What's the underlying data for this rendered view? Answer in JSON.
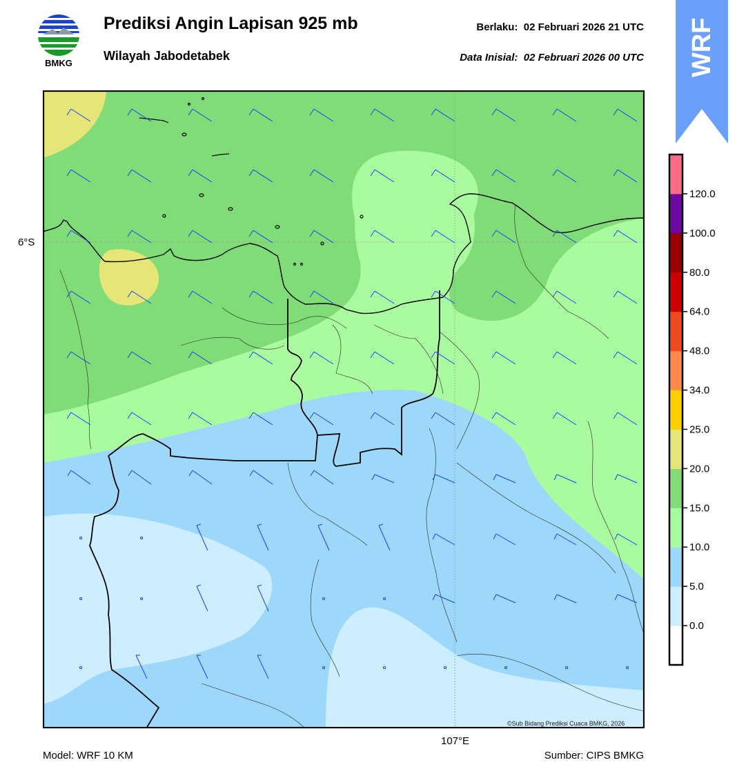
{
  "header": {
    "title": "Prediksi Angin Lapisan 925 mb",
    "subtitle": "Wilayah Jabodetabek",
    "valid_label": "Berlaku:",
    "valid_time": "02 Februari 2026 21 UTC",
    "init_label": "Data Inisial:",
    "init_time": "02 Februari 2026 00 UTC"
  },
  "logo": {
    "text": "BMKG",
    "icon": "bmkg-logo-icon"
  },
  "badge": {
    "text": "WRF",
    "color": "#6a9ffb",
    "icon": "arrow-up-icon"
  },
  "map": {
    "lat_label": "6°S",
    "lon_label": "107°E",
    "copyright": "©Sub Bidang Prediksi Cuaca BMKG, 2026",
    "barb_color": "#1a3cff",
    "coast_color": "#000000"
  },
  "colorbar": {
    "unit": "",
    "ticks": [
      "120.0",
      "100.0",
      "80.0",
      "64.0",
      "48.0",
      "34.0",
      "25.0",
      "20.0",
      "15.0",
      "10.0",
      "5.0",
      "0.0"
    ],
    "colors": [
      "#ffffff",
      "#cceeff",
      "#9dd8fb",
      "#aafba0",
      "#7fdc76",
      "#e6e678",
      "#fdd000",
      "#ff8a4a",
      "#ef4a1f",
      "#cc0000",
      "#990000",
      "#6a0aa0",
      "#ff6a86"
    ]
  },
  "footer": {
    "model": "Model: WRF 10 KM",
    "source": "Sumber: CIPS BMKG"
  }
}
